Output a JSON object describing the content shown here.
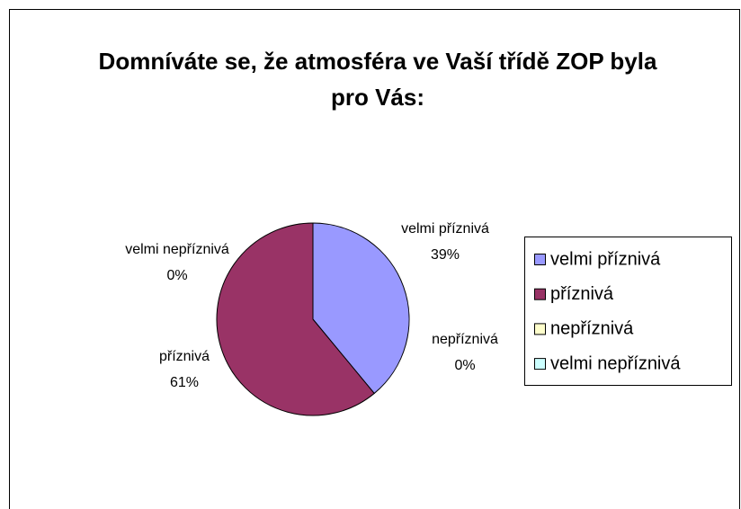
{
  "chart_data": {
    "type": "pie",
    "title": "Domníváte se, že atmosféra ve Vaší třídě ZOP byla pro Vás:",
    "categories": [
      "velmi příznivá",
      "příznivá",
      "nepříznivá",
      "velmi nepříznivá"
    ],
    "values": [
      39,
      61,
      0,
      0
    ],
    "value_labels": [
      "39%",
      "61%",
      "0%",
      "0%"
    ],
    "colors": [
      "#9999ff",
      "#993366",
      "#ffffcc",
      "#ccffff"
    ],
    "legend": "right"
  }
}
